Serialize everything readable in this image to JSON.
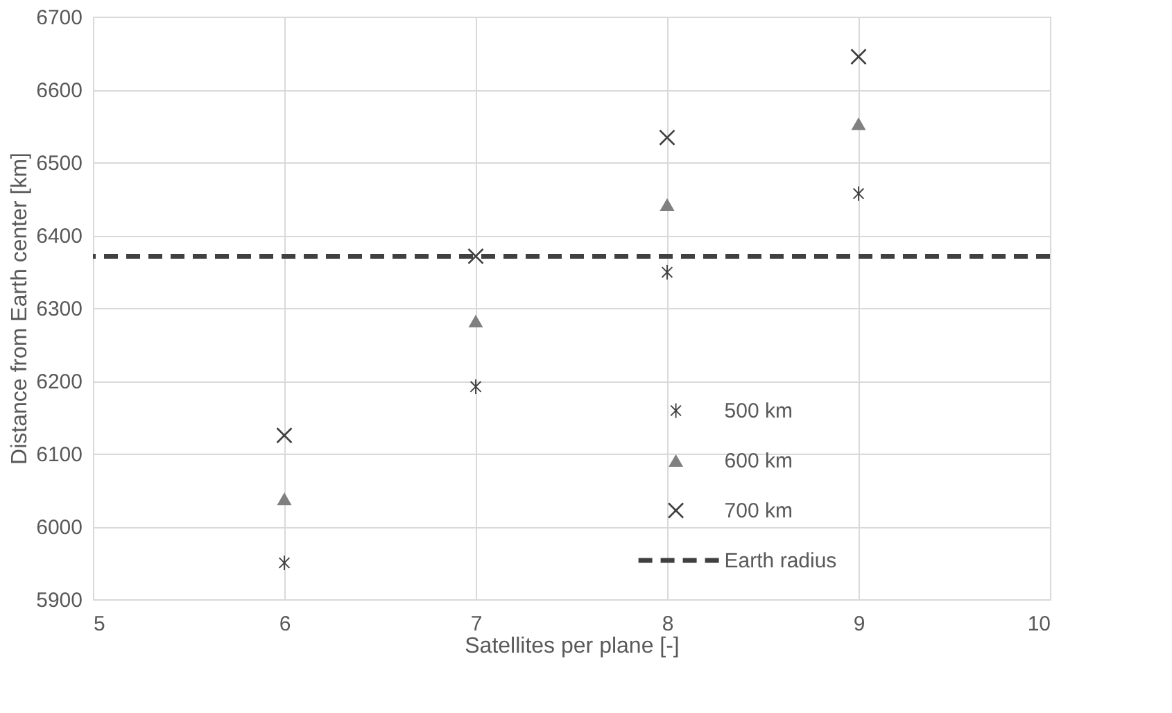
{
  "chart_data": {
    "type": "scatter",
    "xlabel": "Satellites per plane [-]",
    "ylabel": "Distance from Earth center [km]",
    "x": [
      6,
      7,
      8,
      9
    ],
    "series": [
      {
        "name": "500 km",
        "color": "#404040",
        "marker": "star",
        "values": [
          5950,
          6192,
          6349,
          6457
        ]
      },
      {
        "name": "600 km",
        "color": "#808080",
        "marker": "triangle",
        "values": [
          6038,
          6282,
          6442,
          6553
        ]
      },
      {
        "name": "700 km",
        "color": "#404040",
        "marker": "cross",
        "values": [
          6125,
          6371,
          6534,
          6645
        ]
      }
    ],
    "ref_lines": [
      {
        "axis": "y",
        "value": 6371,
        "label": "Earth radius",
        "color": "#404040",
        "line_style": "dashed"
      }
    ],
    "xlim": [
      5,
      10
    ],
    "xticks": [
      5,
      6,
      7,
      8,
      9,
      10
    ],
    "ylim": [
      5900,
      6700
    ],
    "yticks": [
      5900,
      6000,
      6100,
      6200,
      6300,
      6400,
      6500,
      6600,
      6700
    ],
    "grid": true,
    "legend": "bottom right"
  }
}
